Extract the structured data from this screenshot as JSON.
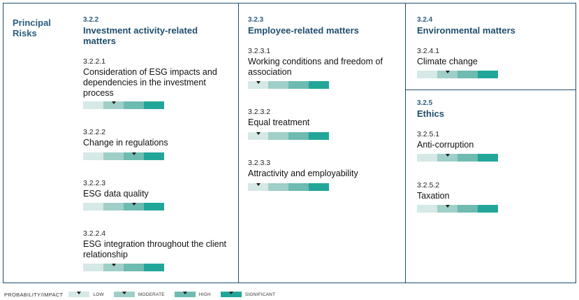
{
  "principal_risks_label": "Principal Risks",
  "sections": [
    {
      "number": "3.2.2",
      "title": "Investment activity-related matters",
      "risks": [
        {
          "number": "3.2.2.1",
          "name": "Consideration of ESG impacts and dependencies in the investment process",
          "level": 1
        },
        {
          "number": "3.2.2.2",
          "name": "Change in regulations",
          "level": 2
        },
        {
          "number": "3.2.2.3",
          "name": "ESG data quality",
          "level": 2
        },
        {
          "number": "3.2.2.4",
          "name": "ESG integration throughout the client relationship",
          "level": 1
        }
      ]
    },
    {
      "number": "3.2.3",
      "title": "Employee-related matters",
      "risks": [
        {
          "number": "3.2.3.1",
          "name": "Working conditions and freedom of association",
          "level": 0
        },
        {
          "number": "3.2.3.2",
          "name": "Equal treatment",
          "level": 0
        },
        {
          "number": "3.2.3.3",
          "name": "Attractivity and employability",
          "level": 0
        }
      ]
    },
    {
      "number": "3.2.4",
      "title": "Environmental matters",
      "risks": [
        {
          "number": "3.2.4.1",
          "name": "Climate change",
          "level": 1
        }
      ]
    },
    {
      "number": "3.2.5",
      "title": "Ethics",
      "risks": [
        {
          "number": "3.2.5.1",
          "name": "Anti-corruption",
          "level": 1
        },
        {
          "number": "3.2.5.2",
          "name": "Taxation",
          "level": 1
        }
      ]
    }
  ],
  "legend": {
    "title": "PROBABILITY/IMPACT",
    "items": [
      {
        "label": "LOW",
        "level": 0
      },
      {
        "label": "MODERATE",
        "level": 1
      },
      {
        "label": "HIGH",
        "level": 2
      },
      {
        "label": "SIGNIFICANT",
        "level": 3
      }
    ]
  },
  "colors": {
    "border": "#1f4e6e",
    "heading": "#1f4e6e",
    "low": "#d5e9e6",
    "moderate": "#9fcfc8",
    "high": "#6dbbb1",
    "significant": "#22a699",
    "marker": "#1d1d1b"
  }
}
